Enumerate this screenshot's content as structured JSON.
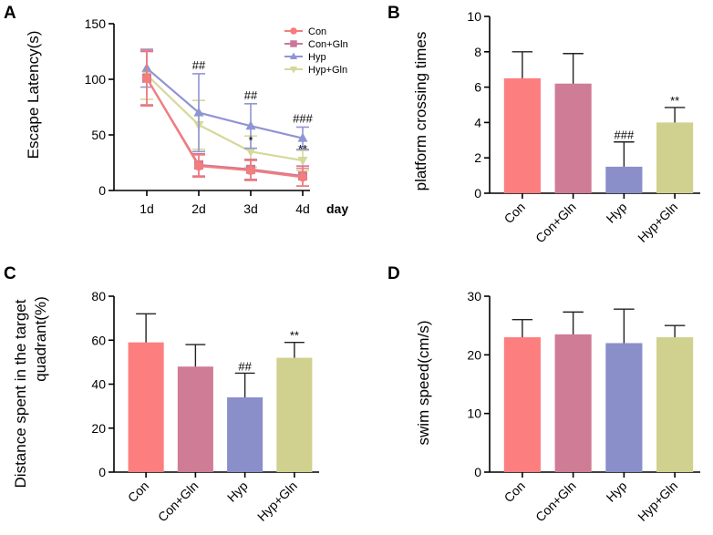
{
  "chart_data": [
    {
      "panel": "A",
      "type": "line",
      "ylabel": "Escape Latency(s)",
      "xlabel": "day",
      "ylim": [
        0,
        150
      ],
      "yticks": [
        0,
        50,
        100,
        150
      ],
      "categories": [
        "1d",
        "2d",
        "3d",
        "4d"
      ],
      "series": [
        {
          "name": "Con",
          "color": "#f47c7c",
          "marker": "circle",
          "values": [
            101,
            22,
            18,
            12
          ],
          "errors": [
            25,
            10,
            9,
            8
          ]
        },
        {
          "name": "Con+Gln",
          "color": "#c9789a",
          "marker": "square",
          "values": [
            101,
            23,
            19,
            13
          ],
          "errors": [
            24,
            10,
            9,
            9
          ]
        },
        {
          "name": "Hyp",
          "color": "#8f95d3",
          "marker": "triangle",
          "values": [
            110,
            70,
            58,
            47
          ],
          "errors": [
            17,
            35,
            20,
            10
          ]
        },
        {
          "name": "Hyp+Gln",
          "color": "#d6d89a",
          "marker": "triangle-down",
          "values": [
            104,
            59,
            35,
            27
          ],
          "errors": [
            22,
            22,
            14,
            9
          ]
        }
      ],
      "annotations": [
        {
          "label": "##",
          "category": "2d"
        },
        {
          "label": "##",
          "category": "3d"
        },
        {
          "label": "*",
          "category": "3d"
        },
        {
          "label": "###",
          "category": "4d"
        },
        {
          "label": "**",
          "category": "4d"
        }
      ]
    },
    {
      "panel": "B",
      "type": "bar",
      "ylabel": "platform crossing times",
      "ylim": [
        0,
        10
      ],
      "yticks": [
        0,
        2,
        4,
        6,
        8,
        10
      ],
      "categories": [
        "Con",
        "Con+Gln",
        "Hyp",
        "Hyp+Gln"
      ],
      "values": [
        6.5,
        6.2,
        1.5,
        4.0
      ],
      "errors": [
        1.5,
        1.7,
        1.4,
        0.85
      ],
      "annotations": [
        {
          "label": "###",
          "category": "Hyp"
        },
        {
          "label": "**",
          "category": "Hyp+Gln"
        }
      ]
    },
    {
      "panel": "C",
      "type": "bar",
      "ylabel": "Distance spent in the target quadrant(%)",
      "ylabel_lines": [
        "Distance spent in the target",
        "quadrant(%)"
      ],
      "ylim": [
        0,
        80
      ],
      "yticks": [
        0,
        20,
        40,
        60,
        80
      ],
      "categories": [
        "Con",
        "Con+Gln",
        "Hyp",
        "Hyp+Gln"
      ],
      "values": [
        59,
        48,
        34,
        52
      ],
      "errors": [
        13,
        10,
        11,
        7
      ],
      "annotations": [
        {
          "label": "##",
          "category": "Hyp"
        },
        {
          "label": "**",
          "category": "Hyp+Gln"
        }
      ]
    },
    {
      "panel": "D",
      "type": "bar",
      "ylabel": "swim speed(cm/s)",
      "ylim": [
        0,
        30
      ],
      "yticks": [
        0,
        10,
        20,
        30
      ],
      "categories": [
        "Con",
        "Con+Gln",
        "Hyp",
        "Hyp+Gln"
      ],
      "values": [
        23,
        23.5,
        22,
        23
      ],
      "errors": [
        3,
        3.8,
        5.8,
        2
      ],
      "annotations": []
    }
  ],
  "bar_colors": [
    "#fc7e7f",
    "#cf7c97",
    "#8a8ec9",
    "#d0d08f"
  ]
}
